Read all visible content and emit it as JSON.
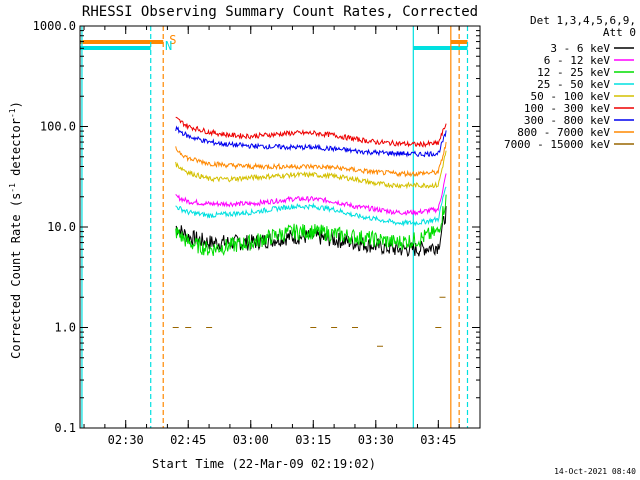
{
  "chart_data": {
    "type": "line",
    "title": "RHESSI Observing Summary Count Rates, Corrected",
    "xlabel": "Start Time (22-Mar-09 02:19:02)",
    "ylabel": "Corrected Count Rate (s⁻¹ detector⁻¹)",
    "ylabel_main": "Corrected Count Rate (s",
    "ylabel_exp1": "-1",
    "ylabel_mid": " detector",
    "ylabel_exp2": "-1",
    "ylabel_end": ")",
    "y_scale": "log",
    "ylim": [
      0.1,
      1000
    ],
    "y_ticks": [
      {
        "value": 0.1,
        "label": "0.1"
      },
      {
        "value": 1,
        "label": "1.0"
      },
      {
        "value": 10,
        "label": "10.0"
      },
      {
        "value": 100,
        "label": "100.0"
      },
      {
        "value": 1000,
        "label": "1000.0"
      }
    ],
    "xlim": [
      "02:19:02",
      "03:55:00"
    ],
    "x_ticks": [
      "02:30",
      "02:45",
      "03:00",
      "03:15",
      "03:30",
      "03:45"
    ],
    "grid": false,
    "legend_position": "right",
    "legend_header": [
      "Det 1,3,4,5,6,9,",
      "Att 0"
    ],
    "series": [
      {
        "name": "3 - 6 keV",
        "color": "#000000",
        "x": [
          "02:42",
          "02:45",
          "02:50",
          "02:55",
          "03:00",
          "03:05",
          "03:10",
          "03:15",
          "03:20",
          "03:25",
          "03:30",
          "03:35",
          "03:40",
          "03:45",
          "03:47"
        ],
        "y": [
          10,
          8,
          7,
          7,
          7,
          7.5,
          8,
          8,
          7.5,
          7,
          6.5,
          6,
          6,
          6.5,
          15
        ]
      },
      {
        "name": "6 - 12 keV",
        "color": "#ff00ff",
        "x": [
          "02:42",
          "02:45",
          "02:50",
          "02:55",
          "03:00",
          "03:05",
          "03:10",
          "03:15",
          "03:20",
          "03:25",
          "03:30",
          "03:35",
          "03:40",
          "03:45",
          "03:47"
        ],
        "y": [
          20,
          18,
          17,
          17,
          17,
          18,
          19,
          19,
          18,
          16,
          15,
          14,
          14,
          15,
          35
        ]
      },
      {
        "name": "12 - 25 keV",
        "color": "#00dd00",
        "x": [
          "02:42",
          "02:45",
          "02:50",
          "02:55",
          "03:00",
          "03:05",
          "03:10",
          "03:15",
          "03:20",
          "03:25",
          "03:30",
          "03:35",
          "03:40",
          "03:45",
          "03:47"
        ],
        "y": [
          9,
          7,
          6,
          6.5,
          7,
          8,
          9,
          9,
          8.5,
          8,
          7.5,
          7,
          7.5,
          9,
          20
        ]
      },
      {
        "name": "25 - 50 keV",
        "color": "#00e0e0",
        "x": [
          "02:42",
          "02:45",
          "02:50",
          "02:55",
          "03:00",
          "03:05",
          "03:10",
          "03:15",
          "03:20",
          "03:25",
          "03:30",
          "03:35",
          "03:40",
          "03:45",
          "03:47"
        ],
        "y": [
          16,
          14,
          13,
          13.5,
          14,
          15,
          16,
          16,
          15,
          13,
          12,
          11,
          11,
          12,
          28
        ]
      },
      {
        "name": "50 - 100 keV",
        "color": "#d4c000",
        "x": [
          "02:42",
          "02:45",
          "02:50",
          "02:55",
          "03:00",
          "03:05",
          "03:10",
          "03:15",
          "03:20",
          "03:25",
          "03:30",
          "03:35",
          "03:40",
          "03:45",
          "03:47"
        ],
        "y": [
          42,
          35,
          30,
          30,
          31,
          32,
          33,
          33,
          32,
          30,
          27,
          26,
          26,
          26,
          60
        ]
      },
      {
        "name": "100 - 300 keV",
        "color": "#ee0000",
        "x": [
          "02:42",
          "02:45",
          "02:50",
          "02:55",
          "03:00",
          "03:05",
          "03:10",
          "03:15",
          "03:20",
          "03:25",
          "03:30",
          "03:35",
          "03:40",
          "03:45",
          "03:47"
        ],
        "y": [
          120,
          100,
          88,
          82,
          80,
          83,
          86,
          86,
          82,
          75,
          70,
          68,
          66,
          68,
          110
        ]
      },
      {
        "name": "300 - 800 keV",
        "color": "#0000ee",
        "x": [
          "02:42",
          "02:45",
          "02:50",
          "02:55",
          "03:00",
          "03:05",
          "03:10",
          "03:15",
          "03:20",
          "03:25",
          "03:30",
          "03:35",
          "03:40",
          "03:45",
          "03:47"
        ],
        "y": [
          95,
          80,
          70,
          66,
          64,
          63,
          62,
          62,
          60,
          57,
          55,
          54,
          53,
          54,
          90
        ]
      },
      {
        "name": "800 - 7000 keV",
        "color": "#ff8800",
        "x": [
          "02:42",
          "02:45",
          "02:50",
          "02:55",
          "03:00",
          "03:05",
          "03:10",
          "03:15",
          "03:20",
          "03:25",
          "03:30",
          "03:35",
          "03:40",
          "03:45",
          "03:47"
        ],
        "y": [
          60,
          48,
          43,
          41,
          40,
          40,
          40,
          40,
          39,
          37,
          35,
          34,
          34,
          35,
          70
        ]
      },
      {
        "name": "7000 - 15000 keV",
        "color": "#996600",
        "x": [
          "02:42",
          "02:45",
          "02:50",
          "03:15",
          "03:20",
          "03:25",
          "03:31",
          "03:45",
          "03:46"
        ],
        "y": [
          1.0,
          1.0,
          1.0,
          1.0,
          1.0,
          1.0,
          0.65,
          1.0,
          2.0
        ]
      }
    ],
    "annotations": [
      {
        "label": "S",
        "x": "02:39",
        "color": "#ff8800"
      },
      {
        "label": "N",
        "x": "02:38",
        "color": "#00e0e0"
      }
    ],
    "state_bars": [
      {
        "color": "#ff8800",
        "ranges": [
          [
            "02:19:02",
            "02:39"
          ],
          [
            "03:48",
            "03:52"
          ]
        ],
        "level": "high"
      },
      {
        "color": "#00e0e0",
        "ranges": [
          [
            "02:19:02",
            "02:36"
          ],
          [
            "03:39",
            "03:52"
          ]
        ],
        "level": "low"
      }
    ],
    "vertical_markers": [
      {
        "x": "02:19:30",
        "color": "#00e0e0",
        "style": "solid"
      },
      {
        "x": "02:36",
        "color": "#00e0e0",
        "style": "dashed"
      },
      {
        "x": "02:39",
        "color": "#ff8800",
        "style": "dashed"
      },
      {
        "x": "03:39",
        "color": "#00e0e0",
        "style": "solid"
      },
      {
        "x": "03:48",
        "color": "#ff8800",
        "style": "solid"
      },
      {
        "x": "03:50",
        "color": "#ff8800",
        "style": "dashed"
      },
      {
        "x": "03:52",
        "color": "#00e0e0",
        "style": "dashed"
      }
    ],
    "timestamp": "14-Oct-2021 08:40"
  }
}
